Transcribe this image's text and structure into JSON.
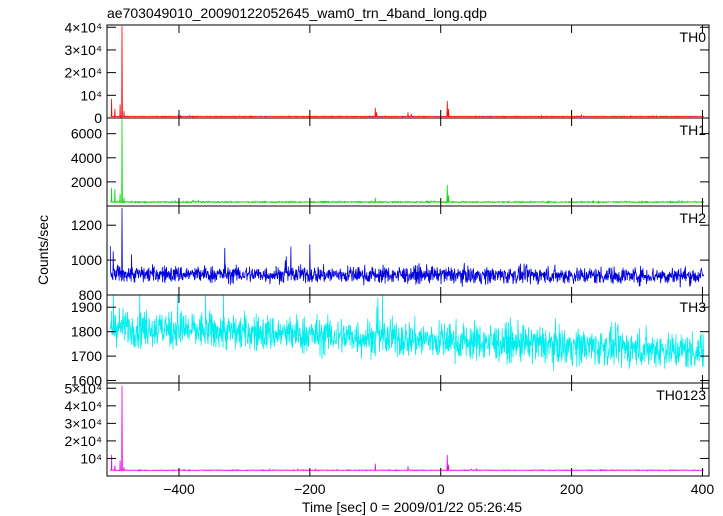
{
  "chart_data": {
    "type": "line",
    "title": "ae703049010_20090122052645_wam0_trn_4band_long.qdp",
    "xlabel": "Time [sec] 0 = 2009/01/22 05:26:45",
    "ylabel": "Counts/sec",
    "xlim": [
      -510,
      410
    ],
    "x_ticks": [
      -400,
      -200,
      0,
      200,
      400
    ],
    "x_tick_labels": [
      "−400",
      "−200",
      "0",
      "200",
      "400"
    ],
    "grid": false,
    "panels": [
      {
        "name": "TH0",
        "color": "#ff0000",
        "ylim": [
          0,
          41000
        ],
        "y_ticks": [
          0,
          10000,
          20000,
          30000,
          40000
        ],
        "y_tick_labels": [
          "0",
          "10⁴",
          "2×10⁴",
          "3×10⁴",
          "4×10⁴"
        ],
        "baseline": 700,
        "noise": 90,
        "peaks": [
          {
            "x": -503,
            "y": 8500
          },
          {
            "x": -498,
            "y": 4000
          },
          {
            "x": -490,
            "y": 6000
          },
          {
            "x": -487,
            "y": 40500
          },
          {
            "x": -484,
            "y": 3000
          },
          {
            "x": -100,
            "y": 4500
          },
          {
            "x": -98,
            "y": 2500
          },
          {
            "x": -50,
            "y": 2500
          },
          {
            "x": -45,
            "y": 1800
          },
          {
            "x": 10,
            "y": 7500
          },
          {
            "x": 12,
            "y": 4000
          },
          {
            "x": 215,
            "y": 1500
          }
        ]
      },
      {
        "name": "TH1",
        "color": "#00dd00",
        "ylim": [
          0,
          7300
        ],
        "y_ticks": [
          2000,
          4000,
          6000
        ],
        "y_tick_labels": [
          "2000",
          "4000",
          "6000"
        ],
        "baseline": 330,
        "noise": 40,
        "peaks": [
          {
            "x": -503,
            "y": 1500
          },
          {
            "x": -498,
            "y": 1400
          },
          {
            "x": -490,
            "y": 1000
          },
          {
            "x": -487,
            "y": 7200
          },
          {
            "x": -484,
            "y": 700
          },
          {
            "x": -100,
            "y": 700
          },
          {
            "x": 10,
            "y": 1750
          },
          {
            "x": 12,
            "y": 900
          }
        ]
      },
      {
        "name": "TH2",
        "color": "#0000dd",
        "ylim": [
          800,
          1310
        ],
        "y_ticks": [
          800,
          1000,
          1200
        ],
        "y_tick_labels": [
          "800",
          "1000",
          "1200"
        ],
        "baseline": 920,
        "noise": 35,
        "trend": -10,
        "peaks": [
          {
            "x": -505,
            "y": 1080
          },
          {
            "x": -487,
            "y": 1300
          },
          {
            "x": -330,
            "y": 1070
          },
          {
            "x": -200,
            "y": 1090
          }
        ]
      },
      {
        "name": "TH3",
        "color": "#00eeee",
        "ylim": [
          1590,
          1950
        ],
        "y_ticks": [
          1600,
          1700,
          1800,
          1900
        ],
        "y_tick_labels": [
          "1600",
          "1700",
          "1800",
          "1900"
        ],
        "baseline": 1820,
        "noise": 55,
        "trend": -100,
        "peaks": [
          {
            "x": -500,
            "y": 1950
          },
          {
            "x": -460,
            "y": 1950
          }
        ]
      },
      {
        "name": "TH0123",
        "color": "#ee00ee",
        "ylim": [
          0,
          53000
        ],
        "y_ticks": [
          10000,
          20000,
          30000,
          40000,
          50000
        ],
        "y_tick_labels": [
          "10⁴",
          "2×10⁴",
          "3×10⁴",
          "4×10⁴",
          "5×10⁴"
        ],
        "baseline": 3300,
        "noise": 150,
        "peaks": [
          {
            "x": -503,
            "y": 12000
          },
          {
            "x": -498,
            "y": 6000
          },
          {
            "x": -490,
            "y": 9000
          },
          {
            "x": -487,
            "y": 51500
          },
          {
            "x": -484,
            "y": 5000
          },
          {
            "x": -100,
            "y": 7000
          },
          {
            "x": -50,
            "y": 5500
          },
          {
            "x": 10,
            "y": 12000
          },
          {
            "x": 12,
            "y": 6500
          }
        ]
      }
    ]
  }
}
